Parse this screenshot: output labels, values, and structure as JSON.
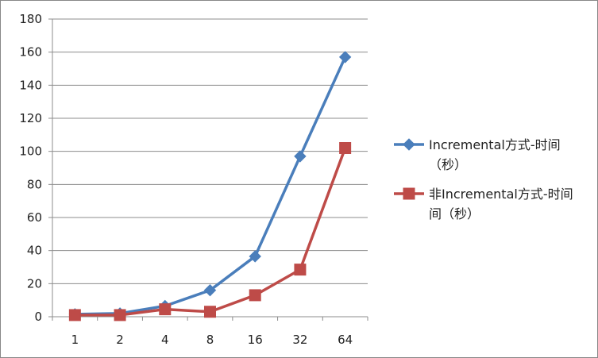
{
  "chart_data": {
    "type": "line",
    "categories": [
      "1",
      "2",
      "4",
      "8",
      "16",
      "32",
      "64"
    ],
    "ylim": [
      0,
      180
    ],
    "yticks": [
      0,
      20,
      40,
      60,
      80,
      100,
      120,
      140,
      160,
      180
    ],
    "grid": true,
    "legend_position": "right",
    "series": [
      {
        "name": "Incremental方式-时间（秒）",
        "name_lines": [
          "Incremental方式-时间",
          "（秒）"
        ],
        "values": [
          1.5,
          2,
          6.5,
          16,
          36.5,
          97,
          157
        ],
        "color": "#4a7ebb",
        "marker": "diamond"
      },
      {
        "name": "非Incremental方式-时间（秒）",
        "name_lines": [
          "非Incremental方式-时间",
          "间（秒）"
        ],
        "values": [
          1,
          1,
          4.5,
          3,
          13,
          28.5,
          102
        ],
        "color": "#be4b48",
        "marker": "square"
      }
    ]
  }
}
